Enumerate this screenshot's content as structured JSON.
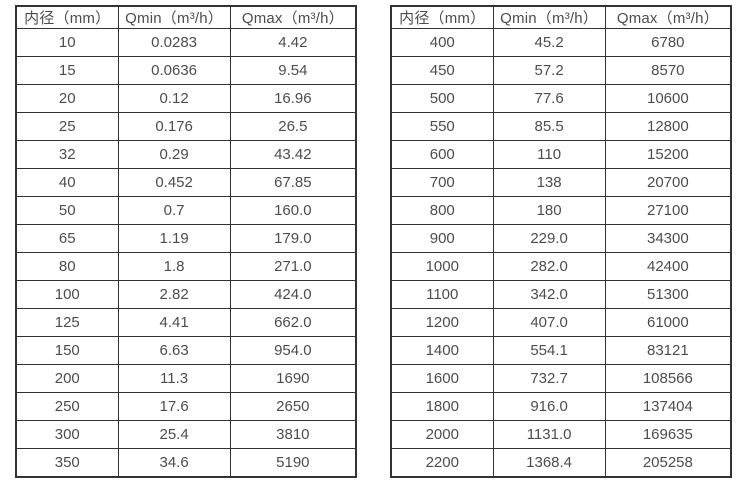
{
  "tables": [
    {
      "name": "small-diameters",
      "headers": [
        "内径（mm）",
        "Qmin（m³/h）",
        "Qmax（m³/h）"
      ],
      "rows": [
        [
          "10",
          "0.0283",
          "4.42"
        ],
        [
          "15",
          "0.0636",
          "9.54"
        ],
        [
          "20",
          "0.12",
          "16.96"
        ],
        [
          "25",
          "0.176",
          "26.5"
        ],
        [
          "32",
          "0.29",
          "43.42"
        ],
        [
          "40",
          "0.452",
          "67.85"
        ],
        [
          "50",
          "0.7",
          "160.0"
        ],
        [
          "65",
          "1.19",
          "179.0"
        ],
        [
          "80",
          "1.8",
          "271.0"
        ],
        [
          "100",
          "2.82",
          "424.0"
        ],
        [
          "125",
          "4.41",
          "662.0"
        ],
        [
          "150",
          "6.63",
          "954.0"
        ],
        [
          "200",
          "11.3",
          "1690"
        ],
        [
          "250",
          "17.6",
          "2650"
        ],
        [
          "300",
          "25.4",
          "3810"
        ],
        [
          "350",
          "34.6",
          "5190"
        ]
      ]
    },
    {
      "name": "large-diameters",
      "headers": [
        "内径（mm）",
        "Qmin（m³/h）",
        "Qmax（m³/h）"
      ],
      "rows": [
        [
          "400",
          "45.2",
          "6780"
        ],
        [
          "450",
          "57.2",
          "8570"
        ],
        [
          "500",
          "77.6",
          "10600"
        ],
        [
          "550",
          "85.5",
          "12800"
        ],
        [
          "600",
          "110",
          "15200"
        ],
        [
          "700",
          "138",
          "20700"
        ],
        [
          "800",
          "180",
          "27100"
        ],
        [
          "900",
          "229.0",
          "34300"
        ],
        [
          "1000",
          "282.0",
          "42400"
        ],
        [
          "1100",
          "342.0",
          "51300"
        ],
        [
          "1200",
          "407.0",
          "61000"
        ],
        [
          "1400",
          "554.1",
          "83121"
        ],
        [
          "1600",
          "732.7",
          "108566"
        ],
        [
          "1800",
          "916.0",
          "137404"
        ],
        [
          "2000",
          "1131.0",
          "169635"
        ],
        [
          "2200",
          "1368.4",
          "205258"
        ]
      ]
    }
  ],
  "colors": {
    "table_border": "#333333",
    "text": "#4d4d4d",
    "background": "#ffffff"
  }
}
